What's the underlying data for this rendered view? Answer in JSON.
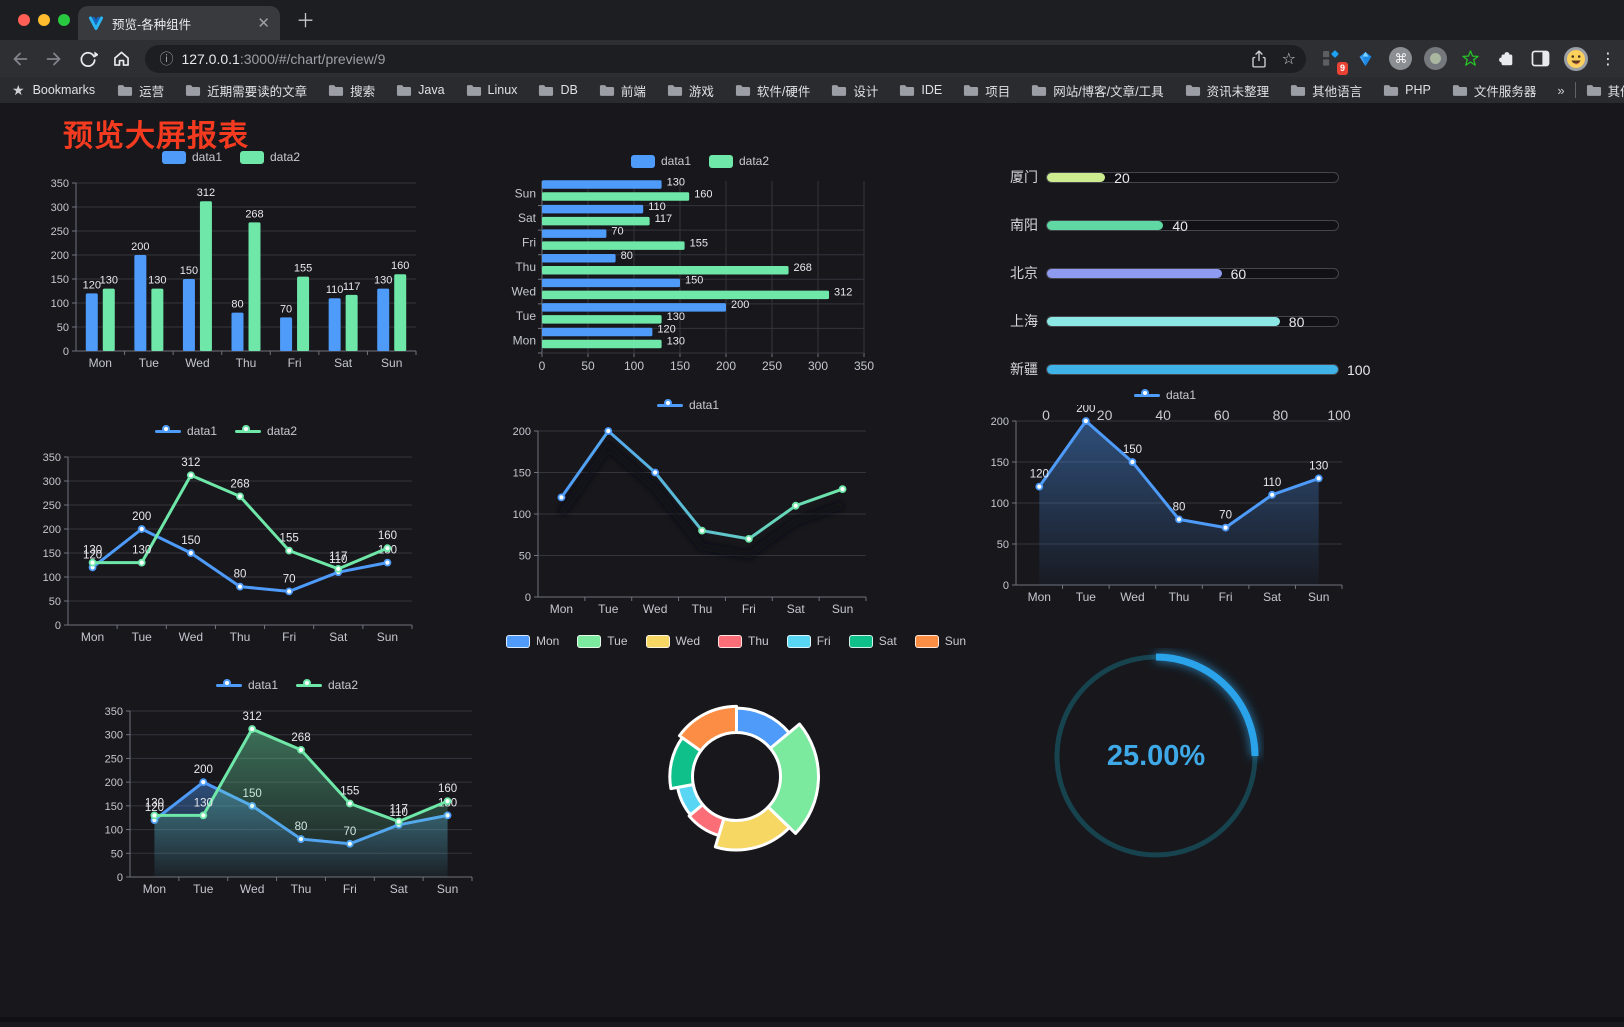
{
  "browser": {
    "tab_title": "预览-各种组件",
    "url_host": "127.0.0.1",
    "url_rest": ":3000/#/chart/preview/9",
    "extensions_badge": "9",
    "bookmarks_bar": {
      "bookmarks_label": "Bookmarks",
      "folders": [
        "运营",
        "近期需要读的文章",
        "搜索",
        "Java",
        "Linux",
        "DB",
        "前端",
        "游戏",
        "软件/硬件",
        "设计",
        "IDE",
        "项目",
        "网站/博客/文章/工具",
        "资讯未整理",
        "其他语言",
        "PHP",
        "文件服务器"
      ],
      "overflow": "»",
      "other_bookmarks": "其他书签"
    }
  },
  "page": {
    "title": "预览大屏报表",
    "title_color": "#f43b20",
    "background": "#17171c"
  },
  "chart_data": [
    {
      "id": "bar-vertical",
      "type": "bar",
      "categories": [
        "Mon",
        "Tue",
        "Wed",
        "Thu",
        "Fri",
        "Sat",
        "Sun"
      ],
      "series": [
        {
          "name": "data1",
          "color": "#4e9bfa",
          "values": [
            120,
            200,
            150,
            80,
            70,
            110,
            130
          ]
        },
        {
          "name": "data2",
          "color": "#6ee7a8",
          "values": [
            130,
            130,
            312,
            268,
            155,
            117,
            160
          ]
        }
      ],
      "ylim": [
        0,
        350
      ],
      "ytick": 50,
      "legend_position": "top",
      "grid": true
    },
    {
      "id": "bar-horizontal",
      "type": "hbar",
      "categories": [
        "Mon",
        "Tue",
        "Wed",
        "Thu",
        "Fri",
        "Sat",
        "Sun"
      ],
      "series": [
        {
          "name": "data1",
          "color": "#4e9bfa",
          "values": [
            120,
            200,
            150,
            80,
            70,
            110,
            130
          ]
        },
        {
          "name": "data2",
          "color": "#6ee7a8",
          "values": [
            130,
            130,
            312,
            268,
            155,
            117,
            160
          ]
        }
      ],
      "xlim": [
        0,
        350
      ],
      "xtick": 50,
      "legend_position": "top",
      "grid": true
    },
    {
      "id": "progress",
      "type": "progress",
      "items": [
        {
          "label": "厦门",
          "value": 20,
          "color": "#cdeb8f"
        },
        {
          "label": "南阳",
          "value": 40,
          "color": "#5fd8a3"
        },
        {
          "label": "北京",
          "value": 60,
          "color": "#8f9bf0"
        },
        {
          "label": "上海",
          "value": 80,
          "color": "#8ce8e4"
        },
        {
          "label": "新疆",
          "value": 100,
          "color": "#3fb3e8"
        }
      ],
      "max": 100,
      "axis_ticks": [
        0,
        20,
        40,
        60,
        80,
        100
      ]
    },
    {
      "id": "line-dual",
      "type": "line",
      "categories": [
        "Mon",
        "Tue",
        "Wed",
        "Thu",
        "Fri",
        "Sat",
        "Sun"
      ],
      "series": [
        {
          "name": "data1",
          "color": "#4e9bfa",
          "values": [
            120,
            200,
            150,
            80,
            70,
            110,
            130
          ]
        },
        {
          "name": "data2",
          "color": "#6ee7a8",
          "values": [
            130,
            130,
            312,
            268,
            155,
            117,
            160
          ]
        }
      ],
      "ylim": [
        0,
        350
      ],
      "ytick": 50,
      "show_labels": true,
      "legend_position": "top",
      "grid": true
    },
    {
      "id": "line-gradient",
      "type": "line",
      "categories": [
        "Mon",
        "Tue",
        "Wed",
        "Thu",
        "Fri",
        "Sat",
        "Sun"
      ],
      "series": [
        {
          "name": "data1",
          "gradient": [
            "#4e9bfa",
            "#6ee7a8"
          ],
          "values": [
            120,
            200,
            150,
            80,
            70,
            110,
            130
          ],
          "shadow": true
        }
      ],
      "ylim": [
        0,
        200
      ],
      "ytick": 50,
      "show_labels": false,
      "legend_position": "top",
      "grid": true
    },
    {
      "id": "area-single",
      "type": "line",
      "categories": [
        "Mon",
        "Tue",
        "Wed",
        "Thu",
        "Fri",
        "Sat",
        "Sun"
      ],
      "series": [
        {
          "name": "data1",
          "color": "#4e9bfa",
          "values": [
            120,
            200,
            150,
            80,
            70,
            110,
            130
          ],
          "area": true
        }
      ],
      "ylim": [
        0,
        200
      ],
      "ytick": 50,
      "show_labels": true,
      "legend_position": "top",
      "grid": true
    },
    {
      "id": "area-dual",
      "type": "line",
      "categories": [
        "Mon",
        "Tue",
        "Wed",
        "Thu",
        "Fri",
        "Sat",
        "Sun"
      ],
      "series": [
        {
          "name": "data1",
          "color": "#4e9bfa",
          "values": [
            120,
            200,
            150,
            80,
            70,
            110,
            130
          ],
          "area": true
        },
        {
          "name": "data2",
          "color": "#6ee7a8",
          "values": [
            130,
            130,
            312,
            268,
            155,
            117,
            160
          ],
          "area": true
        }
      ],
      "ylim": [
        0,
        350
      ],
      "ytick": 50,
      "show_labels": true,
      "legend_position": "top",
      "grid": true
    },
    {
      "id": "pie-rose",
      "type": "pie",
      "categories": [
        "Mon",
        "Tue",
        "Wed",
        "Thu",
        "Fri",
        "Sat",
        "Sun"
      ],
      "values": [
        120,
        200,
        150,
        80,
        70,
        110,
        130
      ],
      "colors": [
        "#4e9bfa",
        "#7bea9f",
        "#f7d764",
        "#fb6d77",
        "#5ad6f5",
        "#10c08a",
        "#fb8e44"
      ],
      "inner_radius": 44,
      "legend_position": "top"
    },
    {
      "id": "gauge",
      "type": "gauge",
      "value": 25,
      "label": "25.00%",
      "color": "#2aa3ea",
      "track_color": "#17434f",
      "text_color": "#3fa9e8"
    }
  ]
}
